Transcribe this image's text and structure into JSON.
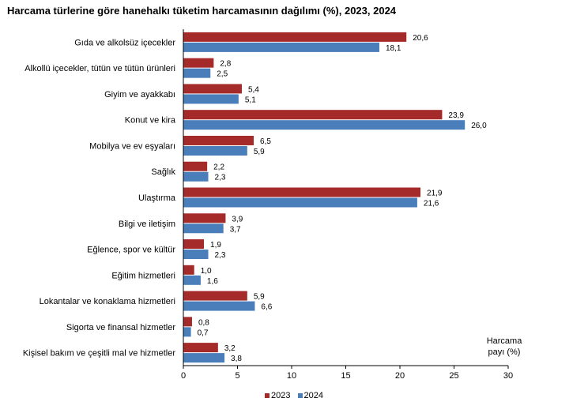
{
  "title": "Harcama türlerine göre hanehalkı tüketim harcamasının dağılımı (%), 2023, 2024",
  "unit_line1": "Harcama",
  "unit_line2": "payı  (%)",
  "colors": {
    "2023": "#A52A2A",
    "2024": "#4A7EBB"
  },
  "chart_data": {
    "type": "bar",
    "orientation": "horizontal",
    "title": "Harcama türlerine göre hanehalkı tüketim harcamasının dağılımı (%), 2023, 2024",
    "xlabel": "Harcama payı  (%)",
    "ylabel": "",
    "xlim": [
      0,
      30
    ],
    "xticks": [
      0,
      5,
      10,
      15,
      20,
      25,
      30
    ],
    "grid": false,
    "legend_position": "bottom",
    "categories": [
      "Gıda ve alkolsüz içecekler",
      "Alkollü içecekler, tütün ve tütün ürünleri",
      "Giyim ve ayakkabı",
      "Konut ve kira",
      "Mobilya ve ev eşyaları",
      "Sağlık",
      "Ulaştırma",
      "Bilgi ve iletişim",
      "Eğlence, spor ve kültür",
      "Eğitim hizmetleri",
      "Lokantalar ve konaklama hizmetleri",
      "Sigorta ve finansal hizmetler",
      "Kişisel bakım ve çeşitli mal ve hizmetler"
    ],
    "series": [
      {
        "name": "2023",
        "values": [
          20.6,
          2.8,
          5.4,
          23.9,
          6.5,
          2.2,
          21.9,
          3.9,
          1.9,
          1.0,
          5.9,
          0.8,
          3.2
        ],
        "labels": [
          "20,6",
          "2,8",
          "5,4",
          "23,9",
          "6,5",
          "2,2",
          "21,9",
          "3,9",
          "1,9",
          "1,0",
          "5,9",
          "0,8",
          "3,2"
        ]
      },
      {
        "name": "2024",
        "values": [
          18.1,
          2.5,
          5.1,
          26.0,
          5.9,
          2.3,
          21.6,
          3.7,
          2.3,
          1.6,
          6.6,
          0.7,
          3.8
        ],
        "labels": [
          "18,1",
          "2,5",
          "5,1",
          "26,0",
          "5,9",
          "2,3",
          "21,6",
          "3,7",
          "2,3",
          "1,6",
          "6,6",
          "0,7",
          "3,8"
        ]
      }
    ]
  }
}
